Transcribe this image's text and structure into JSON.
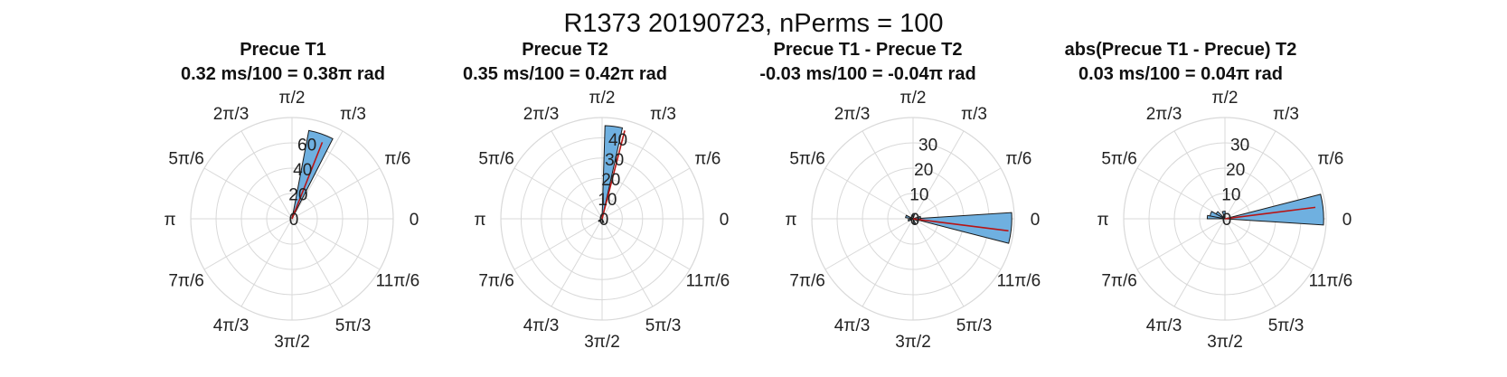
{
  "figure": {
    "title": "R1373 20190723, nPerms = 100"
  },
  "colors": {
    "bar_fill": "#6fb0e0",
    "bar_edge": "#1a1a1a",
    "mean_line": "#b81414",
    "grid": "#d9d9d9",
    "text": "#222222"
  },
  "chart_data": [
    {
      "type": "polar-histogram",
      "title": "Precue T1",
      "subtitle": "0.32 ms/100 = 0.38π rad",
      "theta_labels": [
        "0",
        "π/6",
        "π/3",
        "π/2",
        "2π/3",
        "5π/6",
        "π",
        "7π/6",
        "4π/3",
        "3π/2",
        "5π/3",
        "11π/6"
      ],
      "r_ticks": [
        20,
        40,
        60
      ],
      "r_tick_labels": [
        "0",
        "20",
        "40",
        "60"
      ],
      "rlim": [
        0,
        80
      ],
      "bins": [
        {
          "theta": 0.395,
          "width": 0.09,
          "count": 71
        },
        {
          "theta": 0.405,
          "width": 0.05,
          "count": 6
        }
      ],
      "mean_vector": {
        "theta": 0.38,
        "r": 65
      },
      "grid": true
    },
    {
      "type": "polar-histogram",
      "title": "Precue T2",
      "subtitle": "0.35 ms/100 = 0.42π rad",
      "theta_labels": [
        "0",
        "π/6",
        "π/3",
        "π/2",
        "2π/3",
        "5π/6",
        "π",
        "7π/6",
        "4π/3",
        "3π/2",
        "5π/3",
        "11π/6"
      ],
      "r_ticks": [
        10,
        20,
        30,
        40
      ],
      "r_tick_labels": [
        "0",
        "10",
        "20",
        "30",
        "40"
      ],
      "rlim": [
        0,
        50
      ],
      "bins": [
        {
          "theta": 0.46,
          "width": 0.06,
          "count": 46
        },
        {
          "theta": 1.2,
          "width": 0.1,
          "count": 2
        },
        {
          "theta": 1.6,
          "width": 0.1,
          "count": 2
        }
      ],
      "mean_vector": {
        "theta": 0.42,
        "r": 45
      },
      "grid": true
    },
    {
      "type": "polar-histogram",
      "title": "Precue T1 - Precue T2",
      "subtitle": "-0.03 ms/100 = -0.04π rad",
      "theta_labels": [
        "0",
        "π/6",
        "π/3",
        "π/2",
        "2π/3",
        "5π/6",
        "π",
        "7π/6",
        "4π/3",
        "3π/2",
        "5π/3",
        "11π/6"
      ],
      "r_ticks": [
        10,
        20,
        30
      ],
      "r_tick_labels": [
        "0",
        "10",
        "20",
        "30"
      ],
      "rlim": [
        0,
        40
      ],
      "bins": [
        {
          "theta": -0.03,
          "width": 0.1,
          "count": 39
        },
        {
          "theta": 0.05,
          "width": 0.1,
          "count": 3
        },
        {
          "theta": 0.45,
          "width": 0.1,
          "count": 2
        },
        {
          "theta": 0.9,
          "width": 0.1,
          "count": 3
        },
        {
          "theta": 1.1,
          "width": 0.1,
          "count": 2
        },
        {
          "theta": 1.6,
          "width": 0.1,
          "count": 2
        },
        {
          "theta": 1.9,
          "width": 0.1,
          "count": 2
        }
      ],
      "mean_vector": {
        "theta": -0.04,
        "r": 38
      },
      "grid": true
    },
    {
      "type": "polar-histogram",
      "title": "abs(Precue T1 - Precue) T2",
      "subtitle": "0.03 ms/100 = 0.04π rad",
      "theta_labels": [
        "0",
        "π/6",
        "π/3",
        "π/2",
        "2π/3",
        "5π/6",
        "π",
        "7π/6",
        "4π/3",
        "3π/2",
        "5π/3",
        "11π/6"
      ],
      "r_ticks": [
        10,
        20,
        30
      ],
      "r_tick_labels": [
        "0",
        "10",
        "20",
        "30"
      ],
      "rlim": [
        0,
        40
      ],
      "bins": [
        {
          "theta": 0.03,
          "width": 0.1,
          "count": 39
        },
        {
          "theta": 0.55,
          "width": 0.12,
          "count": 3
        },
        {
          "theta": 0.8,
          "width": 0.1,
          "count": 4
        },
        {
          "theta": 0.9,
          "width": 0.12,
          "count": 6
        },
        {
          "theta": 0.97,
          "width": 0.06,
          "count": 7
        }
      ],
      "mean_vector": {
        "theta": 0.04,
        "r": 36
      },
      "grid": true
    }
  ]
}
